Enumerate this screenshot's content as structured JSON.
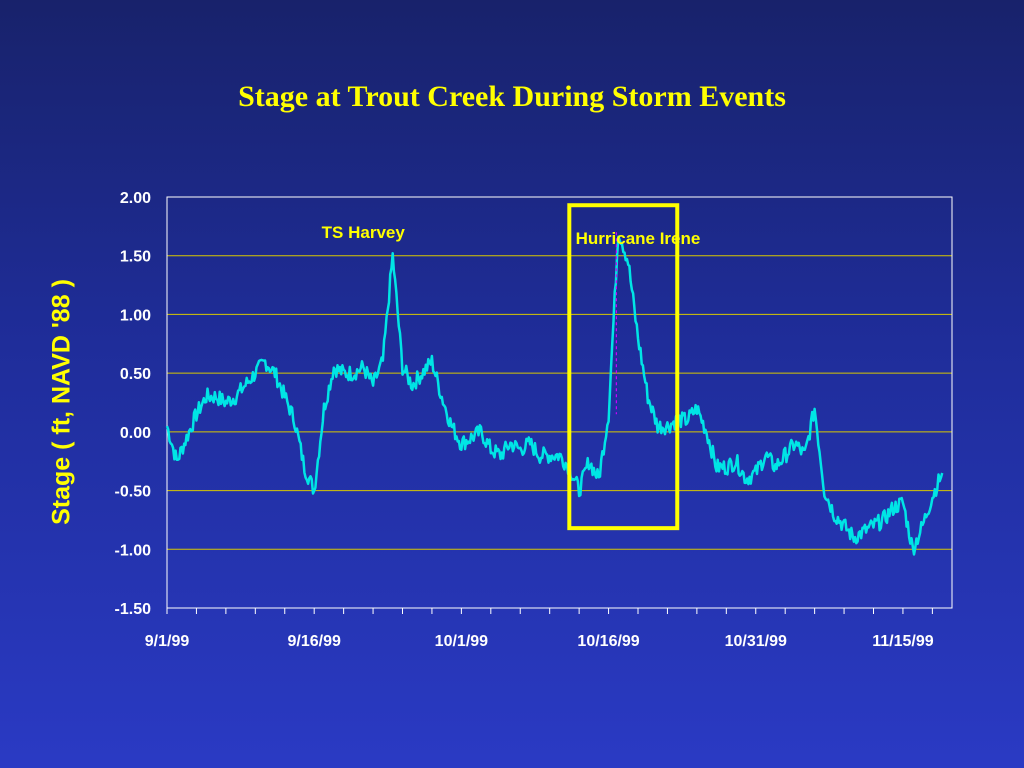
{
  "chart_data": {
    "type": "line",
    "title": "Stage at Trout Creek During Storm Events",
    "xlabel": "",
    "ylabel": "Stage  ( ft, NAVD '88 )",
    "x_tick_labels": [
      "9/1/99",
      "9/16/99",
      "10/1/99",
      "10/16/99",
      "10/31/99",
      "11/15/99"
    ],
    "y_tick_labels": [
      "2.00",
      "1.50",
      "1.00",
      "0.50",
      "0.00",
      "-0.50",
      "-1.00",
      "-1.50"
    ],
    "xlim": [
      "9/1/99",
      "11/20/99"
    ],
    "ylim": [
      -1.5,
      2.0
    ],
    "grid": "horizontal",
    "annotations": [
      {
        "text": "TS Harvey",
        "x": "9/21/99",
        "y": 1.65
      },
      {
        "text": "Hurricane Irene",
        "x": "10/19/99",
        "y": 1.6
      }
    ],
    "highlight_box": {
      "x_start": "10/12/99",
      "x_end": "10/23/99",
      "y_start": -0.82,
      "y_end": 1.93
    },
    "series": [
      {
        "x": [
          "9/1/99",
          "9/2/99",
          "9/3/99",
          "9/4/99",
          "9/5/99",
          "9/6/99",
          "9/7/99",
          "9/8/99",
          "9/9/99",
          "9/10/99",
          "9/11/99",
          "9/12/99",
          "9/13/99",
          "9/14/99",
          "9/15/99",
          "9/16/99",
          "9/17/99",
          "9/18/99",
          "9/19/99",
          "9/20/99",
          "9/21/99",
          "9/22/99",
          "9/23/99",
          "9/24/99",
          "9/25/99",
          "9/26/99",
          "9/27/99",
          "9/28/99",
          "9/29/99",
          "9/30/99",
          "10/1/99",
          "10/2/99",
          "10/3/99",
          "10/4/99",
          "10/5/99",
          "10/6/99",
          "10/7/99",
          "10/8/99",
          "10/9/99",
          "10/10/99",
          "10/11/99",
          "10/12/99",
          "10/13/99",
          "10/14/99",
          "10/15/99",
          "10/16/99",
          "10/17/99",
          "10/18/99",
          "10/19/99",
          "10/20/99",
          "10/21/99",
          "10/22/99",
          "10/23/99",
          "10/24/99",
          "10/25/99",
          "10/26/99",
          "10/27/99",
          "10/28/99",
          "10/29/99",
          "10/30/99",
          "10/31/99",
          "11/1/99",
          "11/2/99",
          "11/3/99",
          "11/4/99",
          "11/5/99",
          "11/6/99",
          "11/7/99",
          "11/8/99",
          "11/9/99",
          "11/10/99",
          "11/11/99",
          "11/12/99",
          "11/13/99",
          "11/14/99",
          "11/15/99",
          "11/16/99",
          "11/17/99",
          "11/18/99",
          "11/19/99"
        ],
        "y": [
          0.05,
          -0.25,
          -0.05,
          0.15,
          0.3,
          0.3,
          0.25,
          0.3,
          0.4,
          0.5,
          0.6,
          0.5,
          0.3,
          0.1,
          -0.3,
          -0.5,
          0.2,
          0.55,
          0.5,
          0.5,
          0.55,
          0.4,
          0.6,
          1.5,
          0.55,
          0.4,
          0.5,
          0.6,
          0.3,
          0.05,
          -0.1,
          -0.05,
          0.0,
          -0.15,
          -0.2,
          -0.1,
          -0.15,
          -0.1,
          -0.2,
          -0.2,
          -0.2,
          -0.3,
          -0.5,
          -0.25,
          -0.4,
          0.15,
          1.72,
          1.45,
          0.8,
          0.3,
          0.05,
          0.05,
          0.1,
          0.1,
          0.2,
          0.0,
          -0.3,
          -0.3,
          -0.25,
          -0.4,
          -0.35,
          -0.2,
          -0.3,
          -0.2,
          -0.1,
          -0.2,
          0.2,
          -0.5,
          -0.7,
          -0.8,
          -0.9,
          -0.85,
          -0.8,
          -0.75,
          -0.65,
          -0.6,
          -1.0,
          -0.8,
          -0.55,
          -0.35
        ]
      }
    ],
    "colors": {
      "line": "#00e5e5",
      "dashed_connector": "#cc00ff",
      "text": "#ffff00",
      "tick_text": "#ffffff",
      "grid": "#d8c800",
      "box": "#ffff00"
    }
  }
}
